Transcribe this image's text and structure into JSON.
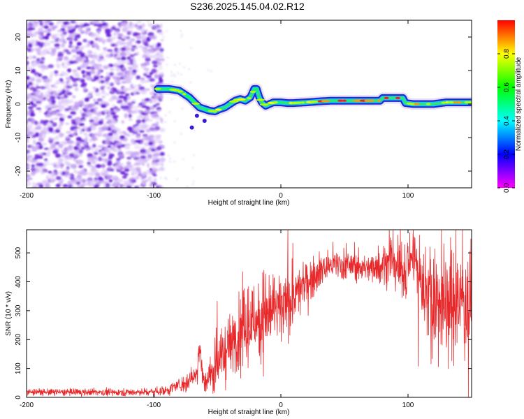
{
  "title": "S236.2025.145.04.02.R12",
  "chart_data": [
    {
      "type": "heatmap",
      "xlabel": "Height of straight line (km)",
      "ylabel": "Frequency (Hz)",
      "xlim": [
        -200,
        150
      ],
      "ylim": [
        -25,
        25
      ],
      "x_ticks": [
        -200,
        -100,
        0,
        100
      ],
      "y_ticks": [
        -20,
        -10,
        0,
        10,
        20
      ],
      "colorbar": {
        "label": "Normalized spectral amplitude",
        "range": [
          0,
          1
        ],
        "ticks": [
          0.0,
          0.2,
          0.4,
          0.6,
          0.8
        ],
        "colormap": [
          "#ff00ff",
          "#0000ff",
          "#00ffff",
          "#00ff00",
          "#ffff00",
          "#ff0000"
        ]
      },
      "noise_region_x": [
        -200,
        -93
      ],
      "noise_color": "#6a1fd8",
      "ridge_line": {
        "x": [
          -97,
          -88,
          -80,
          -76,
          -72,
          -68,
          -64,
          -60,
          -56,
          -52,
          -48,
          -44,
          -40,
          -36,
          -32,
          -28,
          -24,
          -21,
          -19,
          -17,
          -15,
          -12,
          -9,
          -6,
          -3,
          0,
          5,
          10,
          20,
          30,
          40,
          50,
          60,
          70,
          78,
          80,
          90,
          96,
          98,
          104,
          112,
          120,
          130,
          140,
          150
        ],
        "y": [
          4.5,
          4.5,
          4.0,
          3.0,
          2.0,
          0.5,
          -1.0,
          -1.5,
          -2.0,
          -2.2,
          -1.5,
          -1.0,
          0.0,
          1.0,
          1.5,
          1.0,
          2.0,
          4.5,
          4.5,
          2.0,
          0.5,
          -0.5,
          0.0,
          0.5,
          0.5,
          0.5,
          0.3,
          0.3,
          0.5,
          0.8,
          1.0,
          1.0,
          1.0,
          1.0,
          1.0,
          1.8,
          1.8,
          1.8,
          0.3,
          0.0,
          0.0,
          0.0,
          0.5,
          0.5,
          0.5
        ]
      }
    },
    {
      "type": "line",
      "xlabel": "Height of straight line (km)",
      "ylabel": "SNR (10 * v/v)",
      "xlim": [
        -200,
        150
      ],
      "ylim": [
        0,
        580
      ],
      "x_ticks": [
        -200,
        -100,
        0,
        100
      ],
      "y_ticks": [
        0,
        100,
        200,
        300,
        400,
        500
      ],
      "line_color": "#e8292b",
      "envelope": {
        "x": [
          -200,
          -150,
          -110,
          -100,
          -90,
          -75,
          -66,
          -64,
          -62,
          -60,
          -55,
          -50,
          -40,
          -30,
          -20,
          -10,
          0,
          10,
          20,
          30,
          40,
          50,
          60,
          70,
          80,
          90,
          95,
          100,
          105,
          110,
          120,
          130,
          140,
          150
        ],
        "mean": [
          18,
          18,
          18,
          20,
          25,
          50,
          80,
          200,
          90,
          45,
          80,
          120,
          180,
          230,
          270,
          300,
          300,
          340,
          400,
          440,
          460,
          460,
          450,
          450,
          460,
          470,
          440,
          480,
          500,
          400,
          350,
          320,
          330,
          350
        ],
        "spread": [
          12,
          12,
          12,
          15,
          18,
          30,
          50,
          80,
          50,
          40,
          60,
          80,
          120,
          140,
          150,
          150,
          120,
          100,
          80,
          60,
          55,
          50,
          50,
          50,
          60,
          90,
          120,
          100,
          100,
          150,
          180,
          200,
          180,
          170
        ]
      }
    }
  ]
}
